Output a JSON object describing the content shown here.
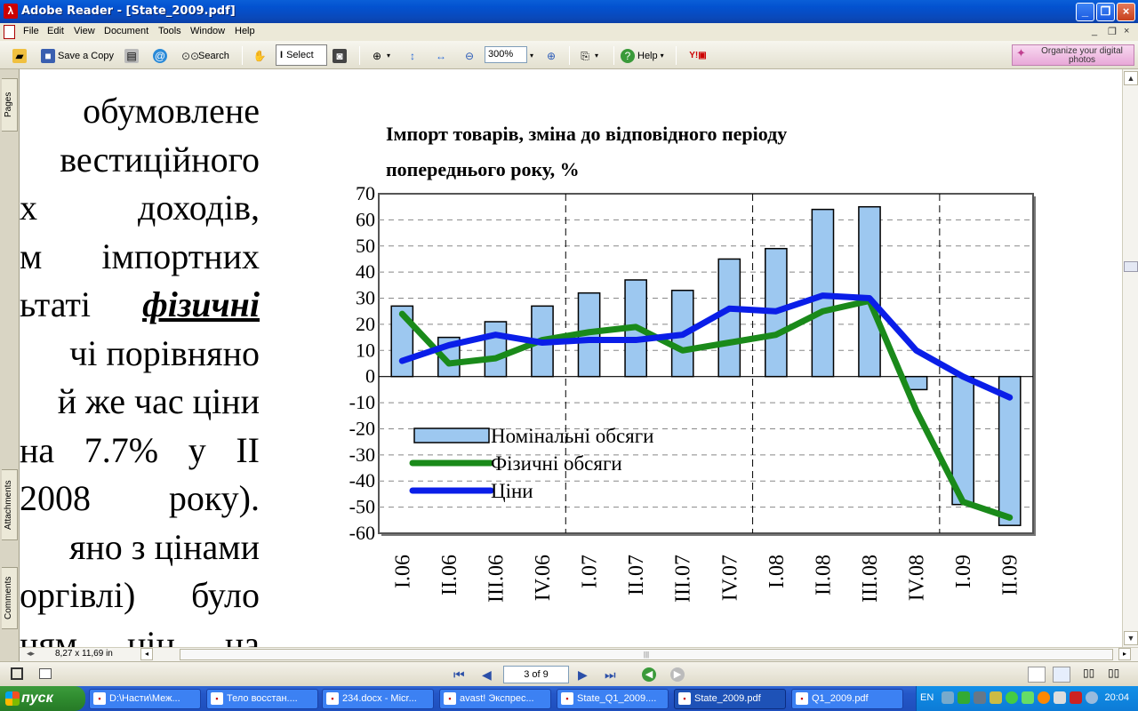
{
  "window": {
    "title": "Adobe Reader - [State_2009.pdf]",
    "buttons": {
      "minimize": "_",
      "maximize": "❐",
      "close": "×"
    }
  },
  "menu": {
    "items": [
      "File",
      "Edit",
      "View",
      "Document",
      "Tools",
      "Window",
      "Help"
    ],
    "mdi_buttons": [
      "_",
      "❐",
      "×"
    ]
  },
  "toolbar": {
    "save_copy": "Save a Copy",
    "search": "Search",
    "select": "Select",
    "zoom": "300%",
    "help": "Help",
    "organize": "Organize your digital photos"
  },
  "nav_tabs": [
    "Pages",
    "Attachments",
    "Comments"
  ],
  "document": {
    "lines": [
      "обумовлене",
      "вестиційного",
      "х доходів,",
      "м імпортних",
      "ьтаті фізичні",
      "чі порівняно",
      "й же час ціни",
      "на 7.7% у II",
      "2008 року).",
      "яно з цінами",
      "оргівлі) було",
      "ням цін на"
    ],
    "line_parts": [
      [
        "обумовлене"
      ],
      [
        "вестиційного"
      ],
      [
        "х",
        "доходів,"
      ],
      [
        "м",
        "імпортних"
      ],
      [
        "ьтаті",
        "фізичні"
      ],
      [
        "чі порівняно"
      ],
      [
        "й же час ціни"
      ],
      [
        "на",
        "7.7%",
        "у",
        "II"
      ],
      [
        "2008",
        "року)."
      ],
      [
        "яно з цінами"
      ],
      [
        "оргівлі)",
        "було"
      ],
      [
        "ням",
        "цін",
        "на"
      ]
    ]
  },
  "chart_data": {
    "type": "bar",
    "title": "Імпорт товарів, зміна до відповідного періоду попереднього року, %",
    "title_lines": [
      "Імпорт товарів, зміна до відповідного періоду",
      "попереднього року, %"
    ],
    "categories": [
      "I.06",
      "II.06",
      "III.06",
      "IV.06",
      "I.07",
      "II.07",
      "III.07",
      "IV.07",
      "I.08",
      "II.08",
      "III.08",
      "IV.08",
      "I.09",
      "II.09"
    ],
    "ylim": [
      -60,
      70
    ],
    "yticks": [
      70,
      60,
      50,
      40,
      30,
      20,
      10,
      0,
      -10,
      -20,
      -30,
      -40,
      -50,
      -60
    ],
    "grid": "horizontal dashed",
    "year_dividers_after": [
      "IV.06",
      "IV.07",
      "IV.08"
    ],
    "legend_position": "bottom-left",
    "series": [
      {
        "name": "Номінальні обсяги",
        "kind": "bar",
        "color": "#9dc8f0",
        "values": [
          27,
          15,
          21,
          27,
          32,
          37,
          33,
          45,
          49,
          64,
          65,
          -5,
          -49,
          -57
        ]
      },
      {
        "name": "Фізичні обсяги",
        "kind": "line",
        "color": "#1a8a1a",
        "values": [
          24,
          5,
          7,
          14,
          17,
          19,
          10,
          13,
          16,
          25,
          29,
          -13,
          -48,
          -54
        ]
      },
      {
        "name": "Ціни",
        "kind": "line",
        "color": "#0a1ee8",
        "values": [
          6,
          12,
          16,
          13,
          14,
          14,
          16,
          26,
          25,
          31,
          30,
          10,
          0,
          -8
        ]
      }
    ]
  },
  "status": {
    "page_size": "8,27 x 11,69 in",
    "page_indicator": "3 of 9"
  },
  "taskbar": {
    "start": "пуск",
    "tasks": [
      "D:\\Насти\\Меж...",
      "Тело восстан....",
      "234.docx - Micr...",
      "avast! Экспрес...",
      "State_Q1_2009....",
      "State_2009.pdf",
      "Q1_2009.pdf"
    ],
    "active_task": 5,
    "lang": "EN",
    "clock": "20:04"
  }
}
